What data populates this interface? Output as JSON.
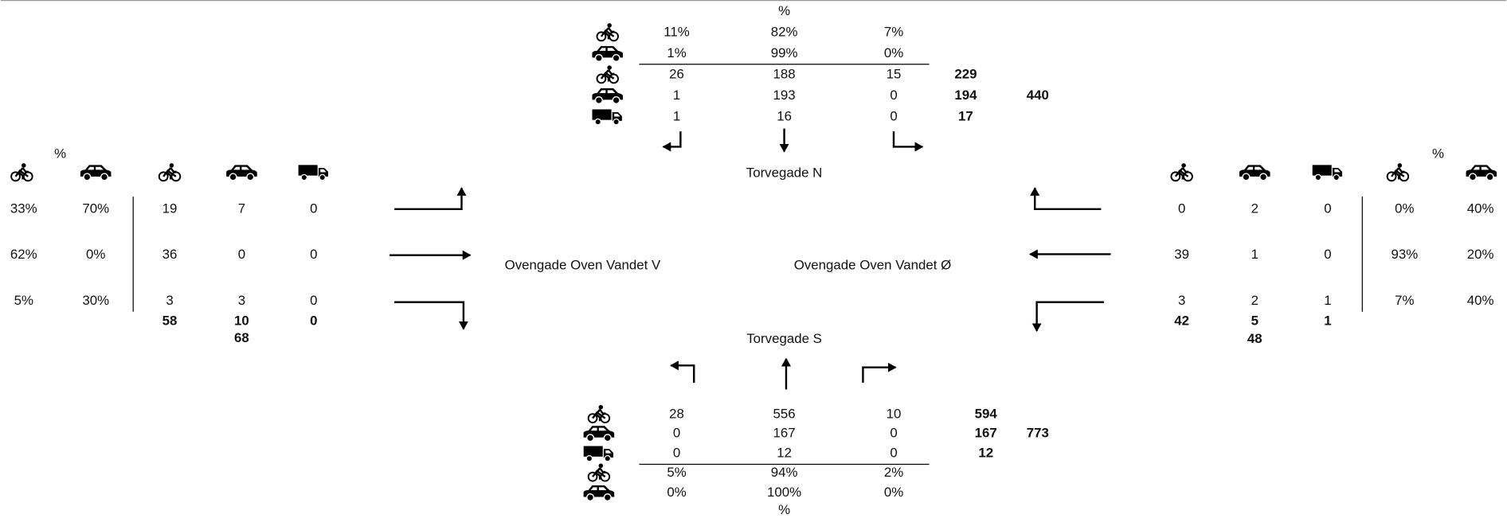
{
  "north": {
    "name": "Torvegade N",
    "pct_label": "%",
    "pct_rows": [
      [
        "11%",
        "82%",
        "7%"
      ],
      [
        "1%",
        "99%",
        "0%"
      ]
    ],
    "counts": [
      [
        26,
        188,
        15
      ],
      [
        1,
        193,
        0
      ],
      [
        1,
        16,
        0
      ]
    ],
    "totals": [
      229,
      194,
      17
    ],
    "grand_total": 440
  },
  "south": {
    "name": "Torvegade S",
    "pct_label": "%",
    "counts": [
      [
        28,
        556,
        10
      ],
      [
        0,
        167,
        0
      ],
      [
        0,
        12,
        0
      ]
    ],
    "totals": [
      594,
      167,
      12
    ],
    "grand_total": 773,
    "pct_rows": [
      [
        "5%",
        "94%",
        "2%"
      ],
      [
        "0%",
        "100%",
        "0%"
      ]
    ]
  },
  "west": {
    "name": "Ovengade Oven Vandet V",
    "pct_label": "%",
    "pct_rows": [
      [
        "33%",
        "70%"
      ],
      [
        "62%",
        "0%"
      ],
      [
        "5%",
        "30%"
      ]
    ],
    "counts": [
      [
        19,
        7,
        0
      ],
      [
        36,
        0,
        0
      ],
      [
        3,
        3,
        0
      ]
    ],
    "totals": [
      58,
      10,
      0
    ],
    "grand_total": 68
  },
  "east": {
    "name": "Ovengade Oven Vandet Ø",
    "pct_label": "%",
    "counts": [
      [
        0,
        2,
        0
      ],
      [
        39,
        1,
        0
      ],
      [
        3,
        2,
        1
      ]
    ],
    "totals": [
      42,
      5,
      1
    ],
    "grand_total": 48,
    "pct_rows": [
      [
        "0%",
        "40%"
      ],
      [
        "93%",
        "20%"
      ],
      [
        "7%",
        "40%"
      ]
    ]
  }
}
